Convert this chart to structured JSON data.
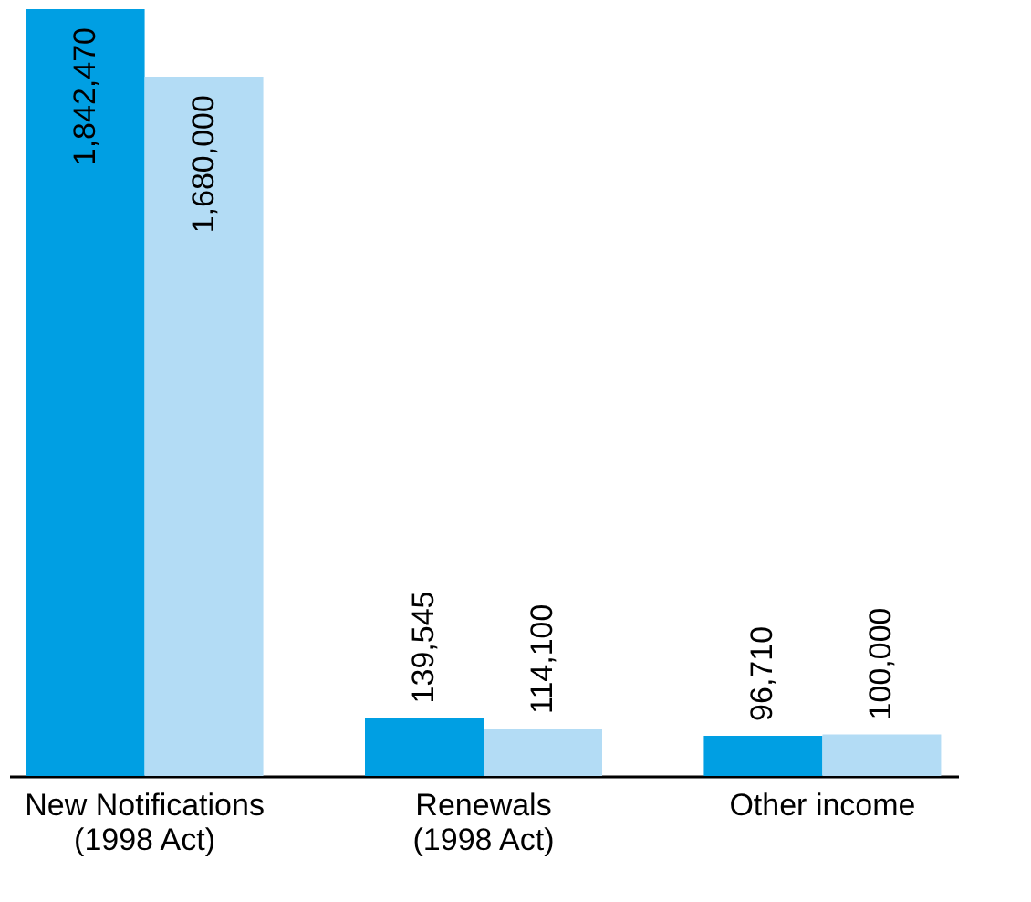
{
  "chart_data": {
    "type": "bar",
    "categories": [
      "New Notifications\n(1998 Act)",
      "Renewals\n(1998 Act)",
      "Other income"
    ],
    "series": [
      {
        "color": "#009fe3",
        "values": [
          1842470,
          139545,
          96710
        ],
        "value_labels": [
          "1,842,470",
          "139,545",
          "96,710"
        ]
      },
      {
        "color": "#b3dcf5",
        "values": [
          1680000,
          114100,
          100000
        ],
        "value_labels": [
          "1,680,000",
          "114,100",
          "100,000"
        ]
      }
    ],
    "grid": false,
    "legend": false
  }
}
